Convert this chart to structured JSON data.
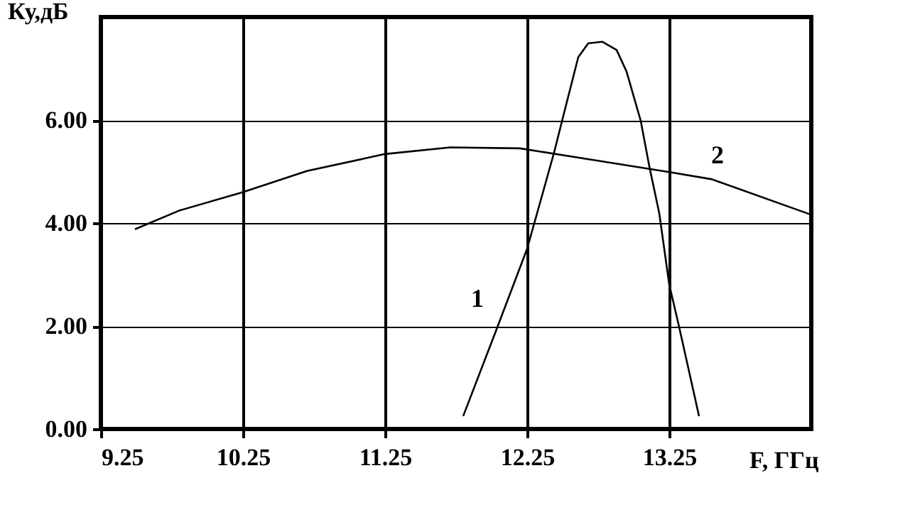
{
  "chart_data": {
    "type": "line",
    "xlabel": "F, ГГц",
    "ylabel": "Ку,дБ",
    "xlim": [
      9.25,
      14.25
    ],
    "xticks": [
      9.25,
      10.25,
      11.25,
      12.25,
      13.25
    ],
    "ylim": [
      0,
      8
    ],
    "yticks": [
      {
        "value": 0,
        "label": "0.00"
      },
      {
        "value": 2,
        "label": "2.00"
      },
      {
        "value": 4,
        "label": "4.00"
      },
      {
        "value": 6,
        "label": "6.00"
      }
    ],
    "grid": true,
    "marker": "none",
    "line_style": "solid",
    "series": [
      {
        "name": "1",
        "color": "#000000",
        "x": [
          11.8,
          12.03,
          12.25,
          12.44,
          12.5,
          12.61,
          12.68,
          12.78,
          12.88,
          12.95,
          13.05,
          13.11,
          13.18,
          13.25,
          13.32,
          13.46
        ],
        "values": [
          0.25,
          1.9,
          3.5,
          5.37,
          6.03,
          7.22,
          7.49,
          7.52,
          7.36,
          6.94,
          5.98,
          5.1,
          4.19,
          2.81,
          1.98,
          0.25
        ]
      },
      {
        "name": "2",
        "color": "#000000",
        "x": [
          9.49,
          9.8,
          10.25,
          10.7,
          11.25,
          11.71,
          12.2,
          12.7,
          13.25,
          13.55,
          14.25
        ],
        "values": [
          3.88,
          4.24,
          4.6,
          5.01,
          5.34,
          5.47,
          5.45,
          5.23,
          4.99,
          4.85,
          4.16
        ]
      }
    ]
  }
}
